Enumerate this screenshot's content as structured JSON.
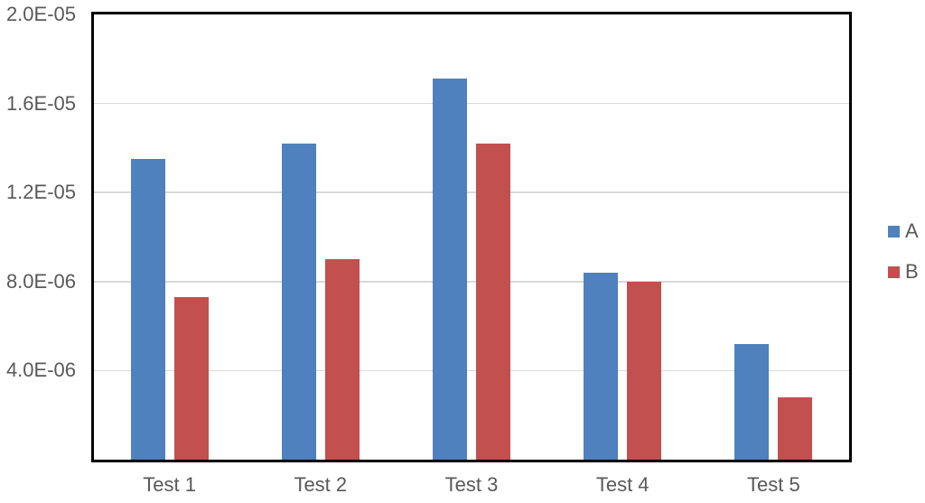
{
  "chart_data": {
    "type": "bar",
    "title": "",
    "xlabel": "",
    "ylabel": "",
    "categories": [
      "Test 1",
      "Test 2",
      "Test 3",
      "Test 4",
      "Test 5"
    ],
    "series": [
      {
        "name": "A",
        "color": "#4E81BD",
        "values": [
          1.35e-05,
          1.42e-05,
          1.71e-05,
          8.4e-06,
          5.2e-06
        ]
      },
      {
        "name": "B",
        "color": "#C1504E",
        "values": [
          7.3e-06,
          9e-06,
          1.42e-05,
          8e-06,
          2.8e-06
        ]
      }
    ],
    "ylim": [
      0,
      2e-05
    ],
    "yticks": [
      {
        "value": 4e-06,
        "label": "4.0E-06"
      },
      {
        "value": 8e-06,
        "label": "8.0E-06"
      },
      {
        "value": 1.2e-05,
        "label": "1.2E-05"
      },
      {
        "value": 1.6e-05,
        "label": "1.6E-05"
      },
      {
        "value": 2e-05,
        "label": "2.0E-05"
      }
    ],
    "grid": true,
    "legend_position": "right",
    "colors": {
      "axis_border": "#000000",
      "gridline": "#d9d9d9",
      "label_text": "#595959",
      "background": "#ffffff"
    }
  }
}
